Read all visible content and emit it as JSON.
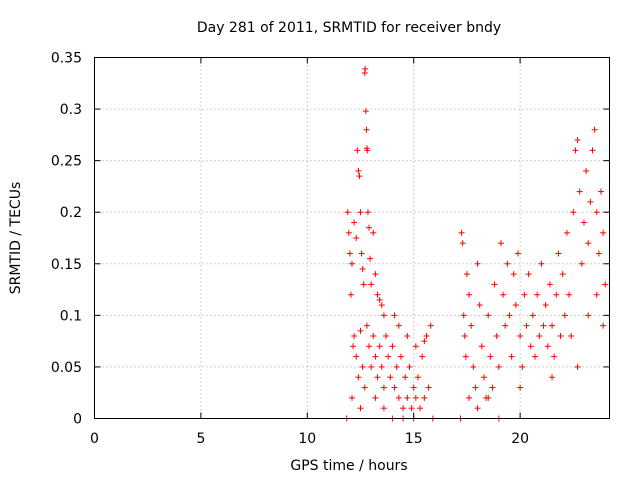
{
  "chart_data": {
    "type": "scatter",
    "title": "Day 281 of 2011, SRMTID for receiver bndy",
    "xlabel": "GPS time / hours",
    "ylabel": "SRMTID / TECUs",
    "xlim": [
      0,
      24.2
    ],
    "ylim": [
      0,
      0.35
    ],
    "xticks": [
      0,
      5,
      10,
      15,
      20
    ],
    "xtick_labels": [
      "0",
      "5",
      "10",
      "15",
      "20"
    ],
    "yticks": [
      0,
      0.05,
      0.1,
      0.15,
      0.2,
      0.25,
      0.3,
      0.35
    ],
    "ytick_labels": [
      "0",
      "0.05",
      "0.1",
      "0.15",
      "0.2",
      "0.25",
      "0.3",
      "0.35"
    ],
    "grid": true,
    "marker": "+",
    "color": "#ff0000",
    "series": [
      {
        "name": "SRMTID",
        "points": [
          [
            11.85,
            0.0
          ],
          [
            11.9,
            0.2
          ],
          [
            11.95,
            0.18
          ],
          [
            12.0,
            0.16
          ],
          [
            12.05,
            0.12
          ],
          [
            12.1,
            0.15
          ],
          [
            12.15,
            0.07
          ],
          [
            12.2,
            0.19
          ],
          [
            12.3,
            0.175
          ],
          [
            12.35,
            0.26
          ],
          [
            12.4,
            0.24
          ],
          [
            12.45,
            0.235
          ],
          [
            12.5,
            0.2
          ],
          [
            12.55,
            0.16
          ],
          [
            12.6,
            0.145
          ],
          [
            12.65,
            0.13
          ],
          [
            12.7,
            0.335
          ],
          [
            12.72,
            0.339
          ],
          [
            12.75,
            0.298
          ],
          [
            12.78,
            0.28
          ],
          [
            12.8,
            0.262
          ],
          [
            12.82,
            0.26
          ],
          [
            12.85,
            0.2
          ],
          [
            12.9,
            0.185
          ],
          [
            12.95,
            0.155
          ],
          [
            13.0,
            0.13
          ],
          [
            13.1,
            0.18
          ],
          [
            13.2,
            0.14
          ],
          [
            13.3,
            0.12
          ],
          [
            13.4,
            0.115
          ],
          [
            13.5,
            0.11
          ],
          [
            13.6,
            0.1
          ],
          [
            12.2,
            0.08
          ],
          [
            12.3,
            0.06
          ],
          [
            12.4,
            0.04
          ],
          [
            12.5,
            0.085
          ],
          [
            12.6,
            0.05
          ],
          [
            12.7,
            0.03
          ],
          [
            12.8,
            0.09
          ],
          [
            12.9,
            0.07
          ],
          [
            13.0,
            0.05
          ],
          [
            13.1,
            0.08
          ],
          [
            13.2,
            0.06
          ],
          [
            13.3,
            0.04
          ],
          [
            13.4,
            0.07
          ],
          [
            13.5,
            0.05
          ],
          [
            13.6,
            0.03
          ],
          [
            13.7,
            0.08
          ],
          [
            13.8,
            0.06
          ],
          [
            13.9,
            0.04
          ],
          [
            14.0,
            0.07
          ],
          [
            14.1,
            0.03
          ],
          [
            14.2,
            0.05
          ],
          [
            14.3,
            0.02
          ],
          [
            14.4,
            0.06
          ],
          [
            14.5,
            0.01
          ],
          [
            14.6,
            0.04
          ],
          [
            14.7,
            0.02
          ],
          [
            14.8,
            0.05
          ],
          [
            14.9,
            0.01
          ],
          [
            15.0,
            0.03
          ],
          [
            15.1,
            0.02
          ],
          [
            15.2,
            0.04
          ],
          [
            15.3,
            0.01
          ],
          [
            15.4,
            0.06
          ],
          [
            15.5,
            0.02
          ],
          [
            15.6,
            0.08
          ],
          [
            15.7,
            0.03
          ],
          [
            15.8,
            0.09
          ],
          [
            15.9,
            0.0
          ],
          [
            14.1,
            0.1
          ],
          [
            14.3,
            0.09
          ],
          [
            14.7,
            0.08
          ],
          [
            15.1,
            0.07
          ],
          [
            15.5,
            0.075
          ],
          [
            13.2,
            0.02
          ],
          [
            13.6,
            0.01
          ],
          [
            14.0,
            0.0
          ],
          [
            14.5,
            0.0
          ],
          [
            15.0,
            0.0
          ],
          [
            12.1,
            0.02
          ],
          [
            12.5,
            0.01
          ],
          [
            17.2,
            0.0
          ],
          [
            17.25,
            0.18
          ],
          [
            17.3,
            0.17
          ],
          [
            17.35,
            0.1
          ],
          [
            17.4,
            0.08
          ],
          [
            17.45,
            0.06
          ],
          [
            17.5,
            0.14
          ],
          [
            17.6,
            0.12
          ],
          [
            17.7,
            0.09
          ],
          [
            17.8,
            0.05
          ],
          [
            17.9,
            0.03
          ],
          [
            18.0,
            0.15
          ],
          [
            18.1,
            0.11
          ],
          [
            18.2,
            0.07
          ],
          [
            18.3,
            0.04
          ],
          [
            18.4,
            0.02
          ],
          [
            18.5,
            0.1
          ],
          [
            18.6,
            0.06
          ],
          [
            18.7,
            0.03
          ],
          [
            18.8,
            0.13
          ],
          [
            18.9,
            0.08
          ],
          [
            19.0,
            0.05
          ],
          [
            19.1,
            0.17
          ],
          [
            19.2,
            0.12
          ],
          [
            19.3,
            0.09
          ],
          [
            19.4,
            0.15
          ],
          [
            19.5,
            0.1
          ],
          [
            19.6,
            0.06
          ],
          [
            19.7,
            0.14
          ],
          [
            19.8,
            0.11
          ],
          [
            19.9,
            0.16
          ],
          [
            20.0,
            0.08
          ],
          [
            20.1,
            0.05
          ],
          [
            20.2,
            0.12
          ],
          [
            20.3,
            0.09
          ],
          [
            20.4,
            0.14
          ],
          [
            20.5,
            0.07
          ],
          [
            20.6,
            0.1
          ],
          [
            20.7,
            0.06
          ],
          [
            20.8,
            0.12
          ],
          [
            20.9,
            0.08
          ],
          [
            21.0,
            0.15
          ],
          [
            21.1,
            0.09
          ],
          [
            21.2,
            0.11
          ],
          [
            21.3,
            0.07
          ],
          [
            21.4,
            0.13
          ],
          [
            21.5,
            0.09
          ],
          [
            21.6,
            0.06
          ],
          [
            21.7,
            0.12
          ],
          [
            21.8,
            0.16
          ],
          [
            21.9,
            0.08
          ],
          [
            22.0,
            0.14
          ],
          [
            22.1,
            0.1
          ],
          [
            22.2,
            0.18
          ],
          [
            22.3,
            0.12
          ],
          [
            22.4,
            0.08
          ],
          [
            22.5,
            0.2
          ],
          [
            22.6,
            0.26
          ],
          [
            22.7,
            0.27
          ],
          [
            22.8,
            0.22
          ],
          [
            22.9,
            0.15
          ],
          [
            23.0,
            0.19
          ],
          [
            23.1,
            0.24
          ],
          [
            23.2,
            0.17
          ],
          [
            23.3,
            0.21
          ],
          [
            23.4,
            0.26
          ],
          [
            23.5,
            0.28
          ],
          [
            23.6,
            0.2
          ],
          [
            23.7,
            0.16
          ],
          [
            23.8,
            0.22
          ],
          [
            23.9,
            0.18
          ],
          [
            24.0,
            0.13
          ],
          [
            18.0,
            0.01
          ],
          [
            18.5,
            0.02
          ],
          [
            19.0,
            0.0
          ],
          [
            17.6,
            0.02
          ],
          [
            20.0,
            0.03
          ],
          [
            22.7,
            0.05
          ],
          [
            21.5,
            0.04
          ],
          [
            23.2,
            0.1
          ],
          [
            23.6,
            0.12
          ],
          [
            23.9,
            0.09
          ]
        ]
      }
    ]
  }
}
